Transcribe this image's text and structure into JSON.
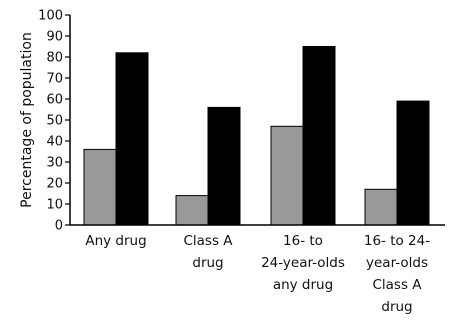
{
  "chart_data": {
    "type": "bar",
    "title": "",
    "xlabel": "",
    "ylabel": "Percentage of population",
    "ylim": [
      0,
      100
    ],
    "yticks": [
      0,
      10,
      20,
      30,
      40,
      50,
      60,
      70,
      80,
      90,
      100
    ],
    "grid": false,
    "legend": "none",
    "categories": [
      [
        "Any drug"
      ],
      [
        "Class A",
        "drug"
      ],
      [
        "16- to",
        "24-year-olds",
        "any drug"
      ],
      [
        "16- to 24-",
        "year-olds",
        "Class A",
        "drug"
      ]
    ],
    "series": [
      {
        "color": "#999999",
        "values": [
          36,
          14,
          47,
          17
        ]
      },
      {
        "color": "#000000",
        "values": [
          82,
          56,
          85,
          59
        ]
      }
    ]
  }
}
